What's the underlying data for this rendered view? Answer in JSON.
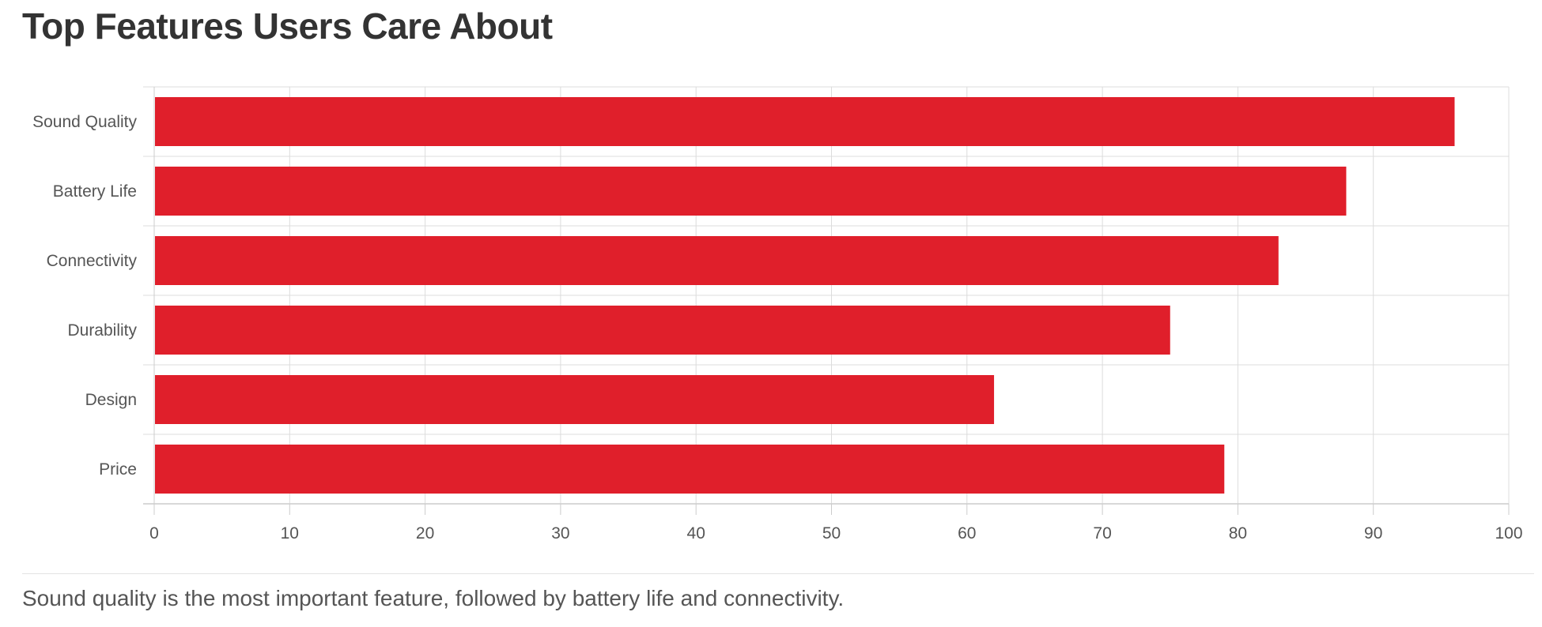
{
  "title": "Top Features Users Care About",
  "caption": "Sound quality is the most important feature, followed by battery life and connectivity.",
  "chart_data": {
    "type": "bar",
    "orientation": "horizontal",
    "title": "Top Features Users Care About",
    "xlabel": "",
    "ylabel": "",
    "categories": [
      "Sound Quality",
      "Battery Life",
      "Connectivity",
      "Durability",
      "Design",
      "Price"
    ],
    "values": [
      96,
      88,
      83,
      75,
      62,
      79
    ],
    "xlim": [
      0,
      100
    ],
    "xticks": [
      0,
      10,
      20,
      30,
      40,
      50,
      60,
      70,
      80,
      90,
      100
    ],
    "grid": true,
    "legend": "none",
    "bar_color": "#e01f2b",
    "grid_color": "#dcdcdc"
  }
}
